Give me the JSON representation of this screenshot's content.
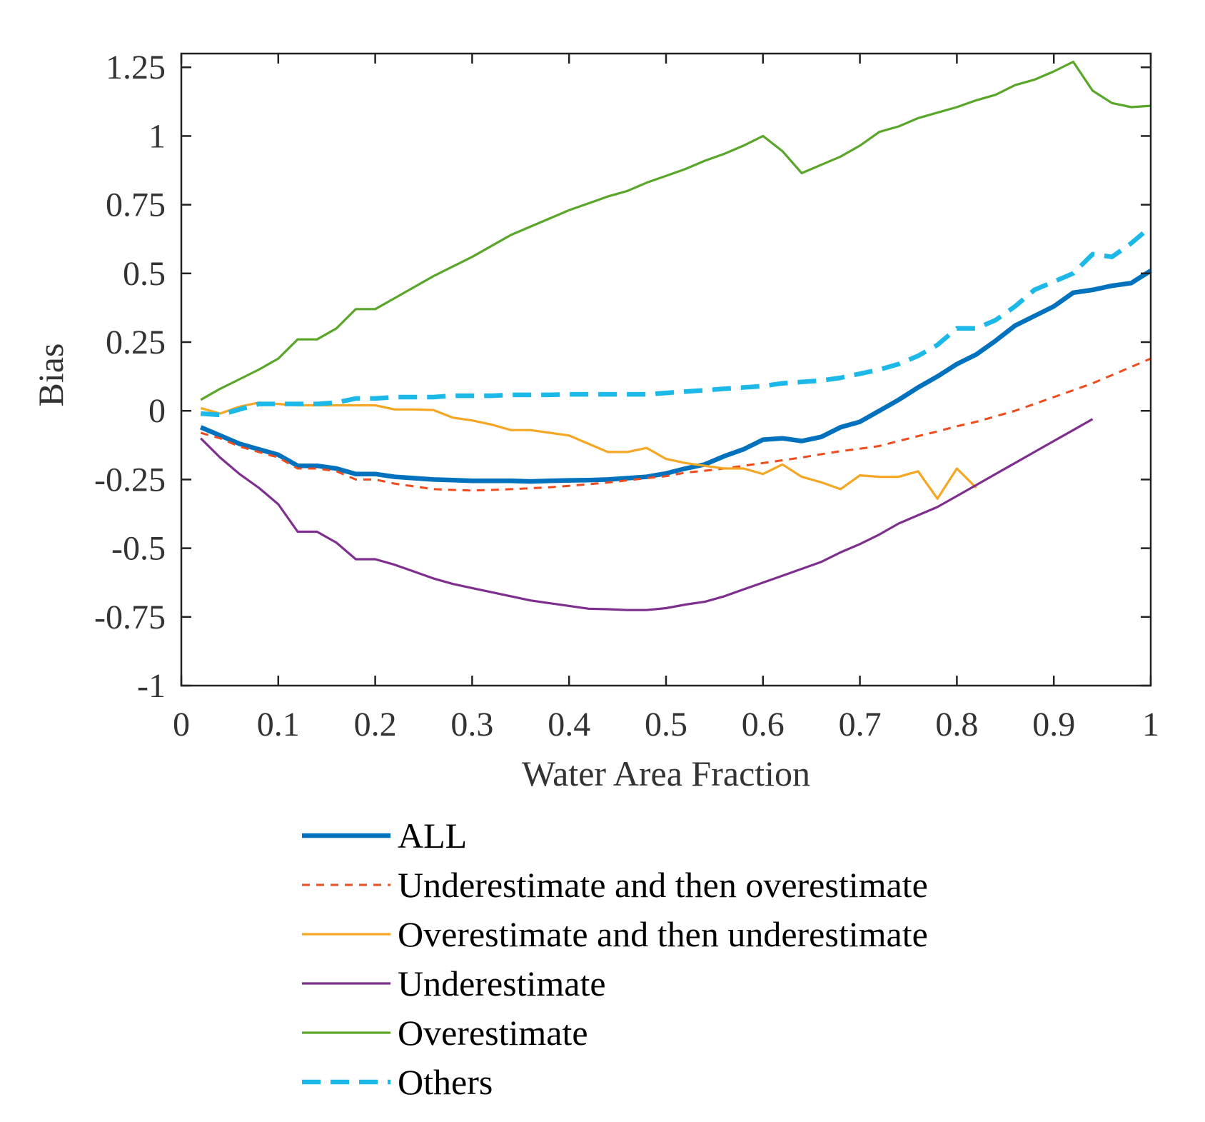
{
  "chart_data": {
    "type": "line",
    "title": "",
    "xlabel": "Water Area Fraction",
    "ylabel": "Bias",
    "xlim": [
      0,
      1
    ],
    "ylim": [
      -1,
      1.3
    ],
    "xticks": [
      0,
      0.1,
      0.2,
      0.3,
      0.4,
      0.5,
      0.6,
      0.7,
      0.8,
      0.9,
      1
    ],
    "xtick_labels": [
      "0",
      "0.1",
      "0.2",
      "0.3",
      "0.4",
      "0.5",
      "0.6",
      "0.7",
      "0.8",
      "0.9",
      "1"
    ],
    "yticks": [
      -1,
      -0.75,
      -0.5,
      -0.25,
      0,
      0.25,
      0.5,
      0.75,
      1,
      1.25
    ],
    "ytick_labels": [
      "-1",
      "-0.75",
      "-0.5",
      "-0.25",
      "0",
      "0.25",
      "0.5",
      "0.75",
      "1",
      "1.25"
    ],
    "grid": false,
    "legend_position": "below",
    "series": [
      {
        "name": "ALL",
        "color": "#0072BD",
        "style": "solid-thick",
        "x": [
          0.02,
          0.04,
          0.06,
          0.08,
          0.1,
          0.12,
          0.14,
          0.16,
          0.18,
          0.2,
          0.22,
          0.24,
          0.26,
          0.28,
          0.3,
          0.32,
          0.34,
          0.36,
          0.38,
          0.4,
          0.42,
          0.44,
          0.46,
          0.48,
          0.5,
          0.52,
          0.54,
          0.56,
          0.58,
          0.6,
          0.62,
          0.64,
          0.66,
          0.68,
          0.7,
          0.72,
          0.74,
          0.76,
          0.78,
          0.8,
          0.82,
          0.84,
          0.86,
          0.88,
          0.9,
          0.92,
          0.94,
          0.96,
          0.98,
          1.0
        ],
        "y": [
          -0.06,
          -0.09,
          -0.12,
          -0.14,
          -0.16,
          -0.2,
          -0.2,
          -0.21,
          -0.23,
          -0.23,
          -0.24,
          -0.245,
          -0.25,
          -0.252,
          -0.255,
          -0.255,
          -0.255,
          -0.257,
          -0.255,
          -0.253,
          -0.252,
          -0.25,
          -0.245,
          -0.24,
          -0.228,
          -0.21,
          -0.195,
          -0.165,
          -0.14,
          -0.105,
          -0.1,
          -0.11,
          -0.095,
          -0.06,
          -0.04,
          0.0,
          0.04,
          0.085,
          0.125,
          0.17,
          0.205,
          0.255,
          0.31,
          0.345,
          0.38,
          0.43,
          0.44,
          0.455,
          0.465,
          0.51
        ]
      },
      {
        "name": "Underestimate and then overestimate",
        "color": "#EE4B1F",
        "style": "dashed-thin",
        "x": [
          0.02,
          0.04,
          0.06,
          0.08,
          0.1,
          0.12,
          0.14,
          0.16,
          0.18,
          0.2,
          0.22,
          0.24,
          0.26,
          0.28,
          0.3,
          0.32,
          0.34,
          0.36,
          0.38,
          0.4,
          0.42,
          0.44,
          0.46,
          0.48,
          0.5,
          0.52,
          0.54,
          0.56,
          0.58,
          0.6,
          0.62,
          0.64,
          0.66,
          0.68,
          0.7,
          0.72,
          0.74,
          0.76,
          0.78,
          0.8,
          0.82,
          0.84,
          0.86,
          0.88,
          0.9,
          0.92,
          0.94,
          0.96,
          0.98,
          1.0
        ],
        "y": [
          -0.08,
          -0.1,
          -0.13,
          -0.15,
          -0.17,
          -0.21,
          -0.21,
          -0.22,
          -0.25,
          -0.25,
          -0.265,
          -0.275,
          -0.285,
          -0.288,
          -0.29,
          -0.288,
          -0.285,
          -0.282,
          -0.278,
          -0.273,
          -0.267,
          -0.261,
          -0.253,
          -0.245,
          -0.238,
          -0.225,
          -0.218,
          -0.21,
          -0.2,
          -0.19,
          -0.18,
          -0.17,
          -0.158,
          -0.147,
          -0.138,
          -0.128,
          -0.11,
          -0.092,
          -0.075,
          -0.056,
          -0.04,
          -0.02,
          0.0,
          0.025,
          0.05,
          0.075,
          0.1,
          0.13,
          0.16,
          0.19
        ]
      },
      {
        "name": "Overestimate and then underestimate",
        "color": "#F5A623",
        "style": "solid-thin",
        "x": [
          0.02,
          0.04,
          0.06,
          0.08,
          0.1,
          0.12,
          0.14,
          0.16,
          0.18,
          0.2,
          0.22,
          0.24,
          0.26,
          0.28,
          0.3,
          0.32,
          0.34,
          0.36,
          0.38,
          0.4,
          0.42,
          0.44,
          0.46,
          0.48,
          0.5,
          0.52,
          0.54,
          0.56,
          0.58,
          0.6,
          0.62,
          0.64,
          0.66,
          0.68,
          0.7,
          0.72,
          0.74,
          0.76,
          0.78,
          0.8,
          0.82
        ],
        "y": [
          0.01,
          -0.01,
          0.015,
          0.03,
          0.025,
          0.02,
          0.02,
          0.02,
          0.02,
          0.02,
          0.005,
          0.005,
          0.003,
          -0.025,
          -0.035,
          -0.05,
          -0.07,
          -0.07,
          -0.08,
          -0.09,
          -0.12,
          -0.15,
          -0.15,
          -0.135,
          -0.175,
          -0.19,
          -0.2,
          -0.21,
          -0.21,
          -0.23,
          -0.195,
          -0.24,
          -0.26,
          -0.285,
          -0.235,
          -0.24,
          -0.24,
          -0.22,
          -0.32,
          -0.21,
          -0.28
        ]
      },
      {
        "name": "Underestimate",
        "color": "#7E2F8E",
        "style": "solid-thin",
        "x": [
          0.02,
          0.04,
          0.06,
          0.08,
          0.1,
          0.12,
          0.14,
          0.16,
          0.18,
          0.2,
          0.22,
          0.24,
          0.26,
          0.28,
          0.3,
          0.32,
          0.34,
          0.36,
          0.38,
          0.4,
          0.42,
          0.44,
          0.46,
          0.48,
          0.5,
          0.52,
          0.54,
          0.56,
          0.58,
          0.6,
          0.62,
          0.64,
          0.66,
          0.68,
          0.7,
          0.72,
          0.74,
          0.76,
          0.78,
          0.8,
          0.82,
          0.84,
          0.86,
          0.88,
          0.9,
          0.92,
          0.94
        ],
        "y": [
          -0.1,
          -0.17,
          -0.23,
          -0.28,
          -0.34,
          -0.44,
          -0.44,
          -0.48,
          -0.54,
          -0.54,
          -0.56,
          -0.585,
          -0.61,
          -0.63,
          -0.645,
          -0.66,
          -0.675,
          -0.69,
          -0.7,
          -0.71,
          -0.72,
          -0.722,
          -0.725,
          -0.725,
          -0.718,
          -0.705,
          -0.695,
          -0.675,
          -0.65,
          -0.625,
          -0.6,
          -0.575,
          -0.55,
          -0.515,
          -0.485,
          -0.45,
          -0.41,
          -0.38,
          -0.35,
          -0.31,
          -0.27,
          -0.23,
          -0.19,
          -0.15,
          -0.11,
          -0.07,
          -0.03
        ]
      },
      {
        "name": "Overestimate",
        "color": "#59A62A",
        "style": "solid-thin",
        "x": [
          0.02,
          0.04,
          0.06,
          0.08,
          0.1,
          0.12,
          0.14,
          0.16,
          0.18,
          0.2,
          0.22,
          0.24,
          0.26,
          0.28,
          0.3,
          0.32,
          0.34,
          0.36,
          0.38,
          0.4,
          0.42,
          0.44,
          0.46,
          0.48,
          0.5,
          0.52,
          0.54,
          0.56,
          0.58,
          0.6,
          0.62,
          0.64,
          0.66,
          0.68,
          0.7,
          0.72,
          0.74,
          0.76,
          0.78,
          0.8,
          0.82,
          0.84,
          0.86,
          0.88,
          0.9,
          0.92,
          0.94,
          0.96,
          0.98,
          1.0
        ],
        "y": [
          0.04,
          0.08,
          0.115,
          0.15,
          0.19,
          0.26,
          0.26,
          0.3,
          0.37,
          0.37,
          0.41,
          0.45,
          0.49,
          0.525,
          0.56,
          0.6,
          0.64,
          0.67,
          0.7,
          0.73,
          0.755,
          0.78,
          0.8,
          0.83,
          0.855,
          0.88,
          0.91,
          0.935,
          0.965,
          1.0,
          0.945,
          0.865,
          0.895,
          0.925,
          0.965,
          1.015,
          1.035,
          1.065,
          1.085,
          1.105,
          1.13,
          1.15,
          1.185,
          1.205,
          1.235,
          1.27,
          1.165,
          1.12,
          1.105,
          1.11
        ]
      },
      {
        "name": "Others",
        "color": "#1BB8E8",
        "style": "dashed-thick",
        "x": [
          0.02,
          0.04,
          0.06,
          0.08,
          0.1,
          0.12,
          0.14,
          0.16,
          0.18,
          0.2,
          0.22,
          0.24,
          0.26,
          0.28,
          0.3,
          0.32,
          0.34,
          0.36,
          0.38,
          0.4,
          0.42,
          0.44,
          0.46,
          0.48,
          0.5,
          0.52,
          0.54,
          0.56,
          0.58,
          0.6,
          0.62,
          0.64,
          0.66,
          0.68,
          0.7,
          0.72,
          0.74,
          0.76,
          0.78,
          0.8,
          0.82,
          0.84,
          0.86,
          0.88,
          0.9,
          0.92,
          0.94,
          0.96,
          0.98,
          1.0
        ],
        "y": [
          -0.01,
          -0.015,
          0.005,
          0.025,
          0.025,
          0.025,
          0.025,
          0.03,
          0.045,
          0.045,
          0.05,
          0.05,
          0.05,
          0.055,
          0.055,
          0.055,
          0.058,
          0.058,
          0.058,
          0.06,
          0.06,
          0.06,
          0.06,
          0.06,
          0.065,
          0.07,
          0.075,
          0.08,
          0.085,
          0.09,
          0.1,
          0.105,
          0.11,
          0.12,
          0.135,
          0.15,
          0.17,
          0.2,
          0.24,
          0.3,
          0.3,
          0.33,
          0.38,
          0.44,
          0.47,
          0.5,
          0.57,
          0.56,
          0.61,
          0.67
        ]
      }
    ]
  }
}
